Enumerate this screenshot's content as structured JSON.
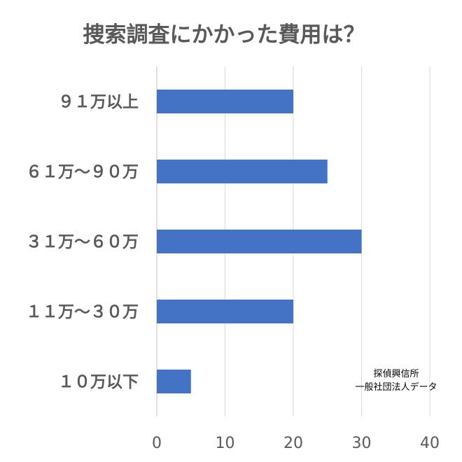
{
  "chart_data": {
    "type": "bar",
    "orientation": "horizontal",
    "title": "捜索調査にかかった費用は？",
    "categories": [
      "９１万以上",
      "６１万～９０万",
      "３１万～６０万",
      "１１万～３０万",
      "１０万以下"
    ],
    "values": [
      20,
      25,
      30,
      20,
      5
    ],
    "xlim": [
      0,
      40
    ],
    "xticks": [
      "0",
      "10",
      "20",
      "30",
      "40"
    ],
    "grid": true,
    "bar_color": "#4472C4",
    "annotation": [
      "探偵興信所",
      "一般社団法人データ"
    ]
  }
}
